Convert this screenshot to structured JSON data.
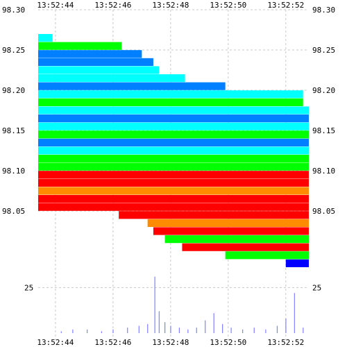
{
  "chart_data": {
    "type": "heatmap",
    "title": "",
    "xlabel": "",
    "ylabel": "",
    "x_tick_labels": [
      "13:52:44",
      "13:52:46",
      "13:52:48",
      "13:52:50",
      "13:52:52"
    ],
    "x_range": [
      "13:52:43.4",
      "13:52:52.8"
    ],
    "y_tick_labels": [
      "98.30",
      "98.25",
      "98.20",
      "98.15",
      "98.10",
      "98.05"
    ],
    "y_range": [
      98.0,
      98.3
    ],
    "volume_tick_labels": [
      "25"
    ],
    "volume_range": [
      0,
      32
    ],
    "grid": true,
    "legend": "none",
    "colors": {
      "very_high": "#ff0000",
      "high": "#ff8c00",
      "mid_high": "#ffd700",
      "mid": "#00ff00",
      "mid_low": "#00ffff",
      "low": "#0080ff",
      "very_low": "#0000ff",
      "sparse": "#a020f0",
      "volume_bar": "#8080ff"
    },
    "bands": [
      {
        "price": 98.265,
        "from": "13:52:43.4",
        "to": "13:52:43.9",
        "color": "#00ffff"
      },
      {
        "price": 98.255,
        "from": "13:52:43.4",
        "to": "13:52:46.3",
        "color": "#00ff00"
      },
      {
        "price": 98.245,
        "from": "13:52:43.4",
        "to": "13:52:47.0",
        "color": "#0080ff"
      },
      {
        "price": 98.235,
        "from": "13:52:43.4",
        "to": "13:52:47.4",
        "color": "#0080ff"
      },
      {
        "price": 98.225,
        "from": "13:52:43.4",
        "to": "13:52:47.6",
        "color": "#00ffff"
      },
      {
        "price": 98.215,
        "from": "13:52:43.4",
        "to": "13:52:48.5",
        "color": "#00ffff"
      },
      {
        "price": 98.205,
        "from": "13:52:43.4",
        "to": "13:52:49.9",
        "color": "#0080ff"
      },
      {
        "price": 98.195,
        "from": "13:52:43.4",
        "to": "13:52:52.6",
        "color": "#00ffff"
      },
      {
        "price": 98.185,
        "from": "13:52:43.4",
        "to": "13:52:52.6",
        "color": "#00ff00"
      },
      {
        "price": 98.175,
        "from": "13:52:43.4",
        "to": "13:52:52.8",
        "color": "#00ffff"
      },
      {
        "price": 98.165,
        "from": "13:52:43.4",
        "to": "13:52:52.8",
        "color": "#0080ff"
      },
      {
        "price": 98.155,
        "from": "13:52:43.4",
        "to": "13:52:52.8",
        "color": "#00ffff"
      },
      {
        "price": 98.145,
        "from": "13:52:43.4",
        "to": "13:52:52.8",
        "color": "#00ff00"
      },
      {
        "price": 98.135,
        "from": "13:52:43.4",
        "to": "13:52:52.8",
        "color": "#0080ff"
      },
      {
        "price": 98.125,
        "from": "13:52:43.4",
        "to": "13:52:52.8",
        "color": "#00ffff"
      },
      {
        "price": 98.115,
        "from": "13:52:43.4",
        "to": "13:52:52.8",
        "color": "#00ff00"
      },
      {
        "price": 98.105,
        "from": "13:52:43.4",
        "to": "13:52:52.8",
        "color": "#00ff00"
      },
      {
        "price": 98.095,
        "from": "13:52:43.4",
        "to": "13:52:52.8",
        "color": "#ff0000"
      },
      {
        "price": 98.085,
        "from": "13:52:43.4",
        "to": "13:52:52.8",
        "color": "#ff0000"
      },
      {
        "price": 98.075,
        "from": "13:52:43.4",
        "to": "13:52:52.8",
        "color": "#ff8c00"
      },
      {
        "price": 98.065,
        "from": "13:52:43.4",
        "to": "13:52:52.8",
        "color": "#ff0000"
      },
      {
        "price": 98.055,
        "from": "13:52:43.4",
        "to": "13:52:52.8",
        "color": "#ff0000"
      },
      {
        "price": 98.045,
        "from": "13:52:46.2",
        "to": "13:52:52.8",
        "color": "#ff0000"
      },
      {
        "price": 98.035,
        "from": "13:52:47.2",
        "to": "13:52:52.8",
        "color": "#ff8c00"
      },
      {
        "price": 98.025,
        "from": "13:52:47.4",
        "to": "13:52:52.8",
        "color": "#ff0000"
      },
      {
        "price": 98.015,
        "from": "13:52:47.8",
        "to": "13:52:52.8",
        "color": "#00ff00"
      },
      {
        "price": 98.005,
        "from": "13:52:48.4",
        "to": "13:52:52.8",
        "color": "#ff0000"
      },
      {
        "price": 97.995,
        "from": "13:52:49.9",
        "to": "13:52:52.8",
        "color": "#00ff00"
      },
      {
        "price": 97.985,
        "from": "13:52:52.0",
        "to": "13:52:52.8",
        "color": "#0000ff"
      }
    ],
    "volume": [
      {
        "time": "13:52:44.2",
        "value": 1
      },
      {
        "time": "13:52:44.6",
        "value": 2
      },
      {
        "time": "13:52:45.1",
        "value": 2
      },
      {
        "time": "13:52:45.6",
        "value": 1
      },
      {
        "time": "13:52:46.0",
        "value": 2
      },
      {
        "time": "13:52:46.5",
        "value": 3
      },
      {
        "time": "13:52:46.9",
        "value": 4
      },
      {
        "time": "13:52:47.2",
        "value": 5
      },
      {
        "time": "13:52:47.45",
        "value": 31
      },
      {
        "time": "13:52:47.6",
        "value": 12
      },
      {
        "time": "13:52:47.8",
        "value": 6
      },
      {
        "time": "13:52:48.0",
        "value": 4
      },
      {
        "time": "13:52:48.3",
        "value": 3
      },
      {
        "time": "13:52:48.6",
        "value": 2
      },
      {
        "time": "13:52:48.9",
        "value": 3
      },
      {
        "time": "13:52:49.2",
        "value": 7
      },
      {
        "time": "13:52:49.5",
        "value": 11
      },
      {
        "time": "13:52:49.8",
        "value": 5
      },
      {
        "time": "13:52:50.1",
        "value": 3
      },
      {
        "time": "13:52:50.5",
        "value": 2
      },
      {
        "time": "13:52:50.9",
        "value": 3
      },
      {
        "time": "13:52:51.3",
        "value": 2
      },
      {
        "time": "13:52:51.7",
        "value": 4
      },
      {
        "time": "13:52:52.0",
        "value": 8
      },
      {
        "time": "13:52:52.3",
        "value": 22
      },
      {
        "time": "13:52:52.6",
        "value": 3
      }
    ]
  }
}
